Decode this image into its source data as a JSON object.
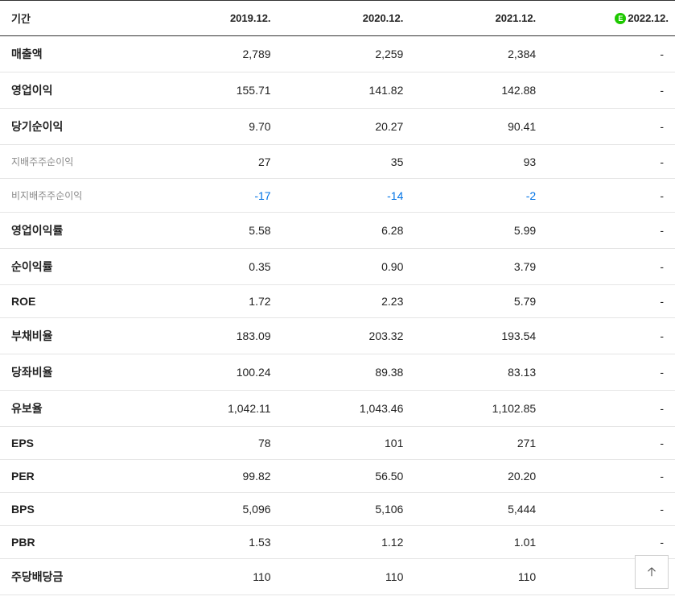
{
  "table": {
    "header": {
      "period_label": "기간",
      "columns": [
        "2019.12.",
        "2020.12.",
        "2021.12.",
        "2022.12."
      ],
      "estimate_badge": "E",
      "estimate_column_index": 3
    },
    "rows": [
      {
        "label": "매출액",
        "label_style": "bold",
        "values": [
          "2,789",
          "2,259",
          "2,384",
          "-"
        ],
        "negative": [
          false,
          false,
          false,
          false
        ]
      },
      {
        "label": "영업이익",
        "label_style": "bold",
        "values": [
          "155.71",
          "141.82",
          "142.88",
          "-"
        ],
        "negative": [
          false,
          false,
          false,
          false
        ]
      },
      {
        "label": "당기순이익",
        "label_style": "bold",
        "values": [
          "9.70",
          "20.27",
          "90.41",
          "-"
        ],
        "negative": [
          false,
          false,
          false,
          false
        ]
      },
      {
        "label": "지배주주순이익",
        "label_style": "small",
        "values": [
          "27",
          "35",
          "93",
          "-"
        ],
        "negative": [
          false,
          false,
          false,
          false
        ]
      },
      {
        "label": "비지배주주순이익",
        "label_style": "small",
        "values": [
          "-17",
          "-14",
          "-2",
          "-"
        ],
        "negative": [
          true,
          true,
          true,
          false
        ]
      },
      {
        "label": "영업이익률",
        "label_style": "bold",
        "values": [
          "5.58",
          "6.28",
          "5.99",
          "-"
        ],
        "negative": [
          false,
          false,
          false,
          false
        ]
      },
      {
        "label": "순이익률",
        "label_style": "bold",
        "values": [
          "0.35",
          "0.90",
          "3.79",
          "-"
        ],
        "negative": [
          false,
          false,
          false,
          false
        ]
      },
      {
        "label": "ROE",
        "label_style": "bold",
        "values": [
          "1.72",
          "2.23",
          "5.79",
          "-"
        ],
        "negative": [
          false,
          false,
          false,
          false
        ]
      },
      {
        "label": "부채비율",
        "label_style": "bold",
        "values": [
          "183.09",
          "203.32",
          "193.54",
          "-"
        ],
        "negative": [
          false,
          false,
          false,
          false
        ]
      },
      {
        "label": "당좌비율",
        "label_style": "bold",
        "values": [
          "100.24",
          "89.38",
          "83.13",
          "-"
        ],
        "negative": [
          false,
          false,
          false,
          false
        ]
      },
      {
        "label": "유보율",
        "label_style": "bold",
        "values": [
          "1,042.11",
          "1,043.46",
          "1,102.85",
          "-"
        ],
        "negative": [
          false,
          false,
          false,
          false
        ]
      },
      {
        "label": "EPS",
        "label_style": "bold",
        "values": [
          "78",
          "101",
          "271",
          "-"
        ],
        "negative": [
          false,
          false,
          false,
          false
        ]
      },
      {
        "label": "PER",
        "label_style": "bold",
        "values": [
          "99.82",
          "56.50",
          "20.20",
          "-"
        ],
        "negative": [
          false,
          false,
          false,
          false
        ]
      },
      {
        "label": "BPS",
        "label_style": "bold",
        "values": [
          "5,096",
          "5,106",
          "5,444",
          "-"
        ],
        "negative": [
          false,
          false,
          false,
          false
        ]
      },
      {
        "label": "PBR",
        "label_style": "bold",
        "values": [
          "1.53",
          "1.12",
          "1.01",
          "-"
        ],
        "negative": [
          false,
          false,
          false,
          false
        ]
      },
      {
        "label": "주당배당금",
        "label_style": "bold",
        "values": [
          "110",
          "110",
          "110",
          ""
        ],
        "negative": [
          false,
          false,
          false,
          false
        ]
      }
    ]
  },
  "colors": {
    "text": "#222222",
    "text_light": "#888888",
    "negative": "#0073e6",
    "border_dark": "#333333",
    "border_light": "#e5e5e5",
    "badge_bg": "#1ec800",
    "background": "#ffffff"
  }
}
